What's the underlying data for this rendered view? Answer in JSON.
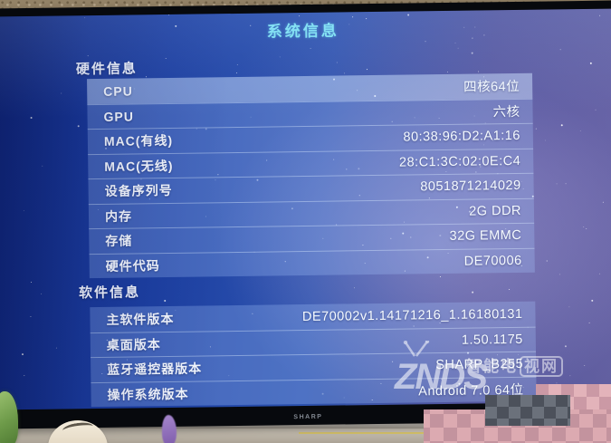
{
  "page": {
    "title": "系统信息"
  },
  "tv": {
    "brand_logo": "SHARP"
  },
  "sections": [
    {
      "title": "硬件信息",
      "rows": [
        {
          "label": "CPU",
          "value": "四核64位",
          "selected": true
        },
        {
          "label": "GPU",
          "value": "六核"
        },
        {
          "label": "MAC(有线)",
          "value": "80:38:96:D2:A1:16"
        },
        {
          "label": "MAC(无线)",
          "value": "28:C1:3C:02:0E:C4"
        },
        {
          "label": "设备序列号",
          "value": "8051871214029"
        },
        {
          "label": "内存",
          "value": "2G DDR"
        },
        {
          "label": "存储",
          "value": "32G EMMC"
        },
        {
          "label": "硬件代码",
          "value": "DE70006"
        }
      ]
    },
    {
      "title": "软件信息",
      "rows": [
        {
          "label": "主软件版本",
          "value": "DE70002v1.14171216_1.16180131"
        },
        {
          "label": "桌面版本",
          "value": "1.50.1175"
        },
        {
          "label": "蓝牙遥控器版本",
          "value": "SHARP_B255"
        },
        {
          "label": "操作系统版本",
          "value": "Android 7.0 64位"
        }
      ]
    }
  ],
  "watermark": {
    "cn_prefix": "智能电",
    "cn_boxed": "视网",
    "brand": "ZNDS",
    "suffix": ".com"
  },
  "colors": {
    "title_accent": "#7fe3f2",
    "screen_blue": "#1d40a3",
    "screen_purple": "#625f9f",
    "row_band": "rgba(168,200,255,0.28)",
    "row_selected": "rgba(208,228,255,0.50)",
    "bezel_black": "#07090d"
  }
}
